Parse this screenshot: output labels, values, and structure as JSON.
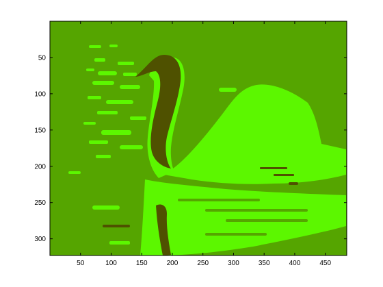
{
  "figure": {
    "background_color": "#ffffff",
    "axes_color": "#000000",
    "palette": {
      "background_green": "#55a500",
      "highlight_green": "#5cf700",
      "dark_olive": "#4f5100"
    },
    "image_description_omitted": true
  },
  "axes": {
    "xlim": [
      0,
      485
    ],
    "ylim": [
      0,
      323
    ],
    "x_ticks": [
      "50",
      "100",
      "150",
      "200",
      "250",
      "300",
      "350",
      "400",
      "450"
    ],
    "y_ticks": [
      "50",
      "100",
      "150",
      "200",
      "250",
      "300"
    ],
    "y_direction": "reversed"
  }
}
